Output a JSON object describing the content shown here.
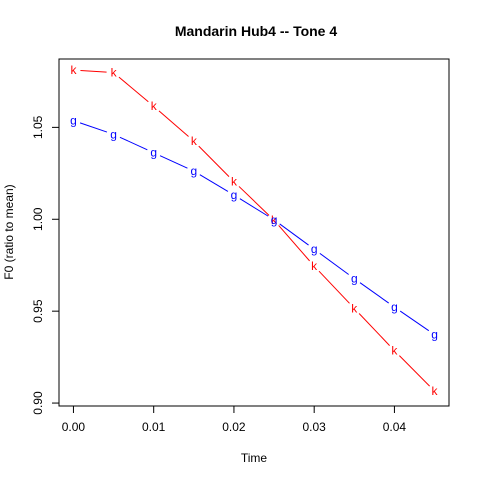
{
  "chart_data": {
    "type": "line",
    "title": "Mandarin Hub4 -- Tone 4",
    "xlabel": "Time",
    "ylabel": "F0 (ratio to mean)",
    "xlim": [
      -0.0018,
      0.0468
    ],
    "ylim": [
      0.8984,
      1.0872
    ],
    "xticks": [
      0.0,
      0.01,
      0.02,
      0.03,
      0.04
    ],
    "xtick_labels": [
      "0.00",
      "0.01",
      "0.02",
      "0.03",
      "0.04"
    ],
    "yticks": [
      0.9,
      0.95,
      1.0,
      1.05
    ],
    "ytick_labels": [
      "0.90",
      "0.95",
      "1.00",
      "1.05"
    ],
    "grid": false,
    "x": [
      0.0,
      0.005,
      0.01,
      0.015,
      0.02,
      0.025,
      0.03,
      0.035,
      0.04,
      0.045
    ],
    "series": [
      {
        "marker": "k",
        "color": "#ff0000",
        "values": [
          1.0812,
          1.0798,
          1.0615,
          1.0425,
          1.0205,
          0.9995,
          0.9745,
          0.9515,
          0.9285,
          0.9065
        ]
      },
      {
        "marker": "g",
        "color": "#0000ff",
        "values": [
          1.0537,
          1.0462,
          1.0362,
          1.0262,
          1.0132,
          0.9997,
          0.9837,
          0.9677,
          0.9522,
          0.9372
        ]
      }
    ]
  }
}
